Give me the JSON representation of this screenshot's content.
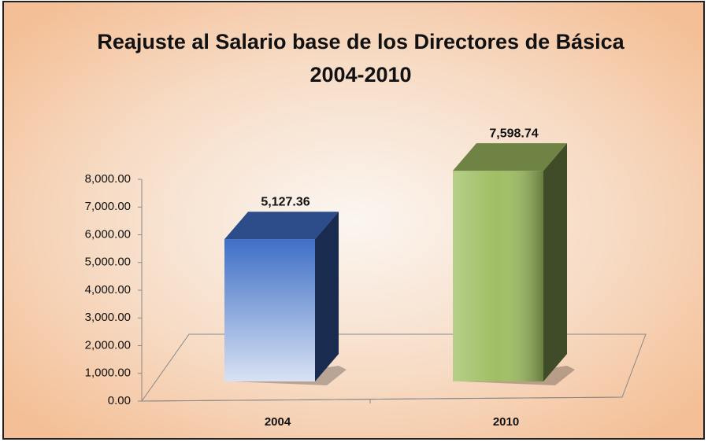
{
  "chart_data": {
    "type": "bar3d",
    "title": [
      "Reajuste al Salario base de los Directores  de Básica",
      "2004-2010"
    ],
    "categories": [
      "2004",
      "2010"
    ],
    "values": [
      5127.36,
      7598.74
    ],
    "value_labels": [
      "5,127.36",
      "7,598.74"
    ],
    "colors": [
      "#3f6fc6",
      "#9fbe62"
    ],
    "ylim": [
      0,
      8000
    ],
    "yticks": [
      {
        "value": 0,
        "label": "0.00"
      },
      {
        "value": 1000,
        "label": "1,000.00"
      },
      {
        "value": 2000,
        "label": "2,000.00"
      },
      {
        "value": 3000,
        "label": "3,000.00"
      },
      {
        "value": 4000,
        "label": "4,000.00"
      },
      {
        "value": 5000,
        "label": "5,000.00"
      },
      {
        "value": 6000,
        "label": "6,000.00"
      },
      {
        "value": 7000,
        "label": "7,000.00"
      },
      {
        "value": 8000,
        "label": "8,000.00"
      }
    ]
  }
}
